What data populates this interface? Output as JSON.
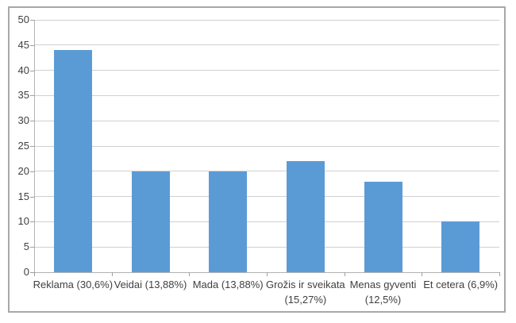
{
  "chart_data": {
    "type": "bar",
    "title": "",
    "xlabel": "",
    "ylabel": "",
    "categories": [
      "Reklama (30,6%)",
      "Veidai (13,88%)",
      "Mada (13,88%)",
      "Grožis ir sveikata (15,27%)",
      "Menas gyventi (12,5%)",
      "Et cetera (6,9%)"
    ],
    "category_lines": [
      [
        "Reklama (30,6%)"
      ],
      [
        "Veidai (13,88%)"
      ],
      [
        "Mada (13,88%)"
      ],
      [
        "Grožis ir sveikata",
        "(15,27%)"
      ],
      [
        "Menas gyventi",
        "(12,5%)"
      ],
      [
        "Et cetera (6,9%)"
      ]
    ],
    "values": [
      44,
      20,
      20,
      22,
      18,
      10
    ],
    "ylim": [
      0,
      50
    ],
    "ytick_step": 5,
    "yticks": [
      0,
      5,
      10,
      15,
      20,
      25,
      30,
      35,
      40,
      45,
      50
    ],
    "grid": true,
    "legend": false,
    "colors": {
      "bar": "#5b9bd5",
      "gridline": "#d0d0d0",
      "axis": "#b2b2b2",
      "tick": "#9e9e9e",
      "text": "#3f3f3f",
      "frame_border": "#a8a8a8",
      "background": "#ffffff"
    }
  }
}
